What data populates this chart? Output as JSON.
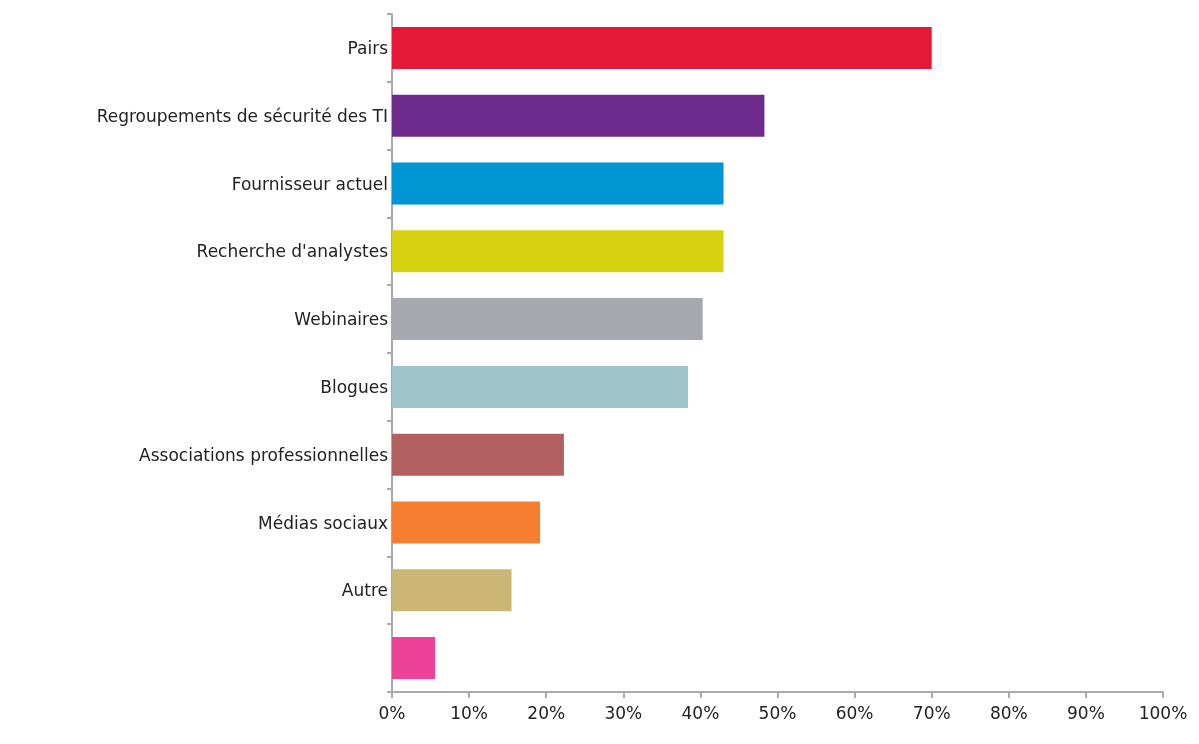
{
  "chart_data": {
    "type": "bar",
    "orientation": "horizontal",
    "categories": [
      "Pairs",
      "Regroupements de sécurité des TI",
      "Fournisseur actuel",
      "Recherche d'analystes",
      "Webinaires",
      "Blogues",
      "Associations professionnelles",
      "Médias sociaux",
      "Autre",
      null
    ],
    "values": [
      70,
      48.3,
      43,
      43,
      40.3,
      38.4,
      22.3,
      19.2,
      15.5,
      5.6
    ],
    "colors": [
      "#e31937",
      "#6d2b8b",
      "#0096d6",
      "#d7d20f",
      "#a6aaae",
      "#9fc4c9",
      "#b36061",
      "#f47f31",
      "#cbb676",
      "#ec4399"
    ],
    "xlim": [
      0,
      100
    ],
    "xticks": [
      {
        "value": 0,
        "label": "0%"
      },
      {
        "value": 10,
        "label": "10%"
      },
      {
        "value": 20,
        "label": "20%"
      },
      {
        "value": 30,
        "label": "30%"
      },
      {
        "value": 40,
        "label": "40%"
      },
      {
        "value": 50,
        "label": "50%"
      },
      {
        "value": 60,
        "label": "60%"
      },
      {
        "value": 70,
        "label": "70%"
      },
      {
        "value": 80,
        "label": "80%"
      },
      {
        "value": 90,
        "label": "90%"
      },
      {
        "value": 100,
        "label": "100%"
      }
    ],
    "grid": false
  }
}
